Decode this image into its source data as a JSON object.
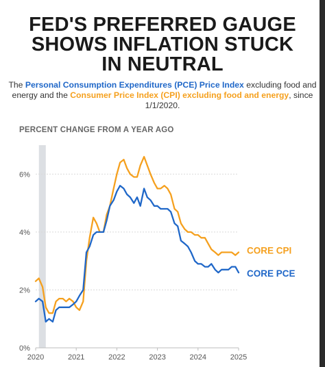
{
  "headline": {
    "line1": "FED'S PREFERRED GAUGE",
    "line2": "SHOWS INFLATION STUCK",
    "line3": "IN NEUTRAL"
  },
  "dek": {
    "t1": "The ",
    "pce_name": "Personal Consumption Expenditures (PCE) Price Index",
    "t2": " excluding food and energy and the ",
    "cpi_name": "Consumer Price Index (CPI) excluding food and energy",
    "t3": ", since 1/1/2020."
  },
  "axis_title": "PERCENT CHANGE FROM A YEAR AGO",
  "colors": {
    "pce": "#1f67c8",
    "cpi": "#f5a01e",
    "grid": "#d9d9d9",
    "recession": "#dcdfe3"
  },
  "chart_data": {
    "type": "line",
    "ylim": [
      0,
      7
    ],
    "xlim": [
      2020.0,
      2025.0
    ],
    "y_ticks": [
      0,
      2,
      4,
      6
    ],
    "y_tick_labels": [
      "0%",
      "2%",
      "4%",
      "6%"
    ],
    "x_ticks": [
      2020,
      2021,
      2022,
      2023,
      2024,
      2025
    ],
    "x_tick_labels": [
      "2020",
      "2021",
      "2022",
      "2023",
      "2024",
      "2025"
    ],
    "grid": true,
    "recession_band": [
      2020.08,
      2020.25
    ],
    "series": [
      {
        "name": "CORE CPI",
        "color": "#f5a01e",
        "x": [
          2020.0,
          2020.08,
          2020.17,
          2020.25,
          2020.33,
          2020.42,
          2020.5,
          2020.58,
          2020.67,
          2020.75,
          2020.83,
          2020.92,
          2021.0,
          2021.08,
          2021.17,
          2021.25,
          2021.33,
          2021.42,
          2021.5,
          2021.58,
          2021.67,
          2021.75,
          2021.83,
          2021.92,
          2022.0,
          2022.08,
          2022.17,
          2022.25,
          2022.33,
          2022.42,
          2022.5,
          2022.58,
          2022.67,
          2022.75,
          2022.83,
          2022.92,
          2023.0,
          2023.08,
          2023.17,
          2023.25,
          2023.33,
          2023.42,
          2023.5,
          2023.58,
          2023.67,
          2023.75,
          2023.83,
          2023.92,
          2024.0,
          2024.08,
          2024.17,
          2024.25,
          2024.33,
          2024.42,
          2024.5,
          2024.58,
          2024.67,
          2024.75,
          2024.83,
          2024.92,
          2025.0
        ],
        "y": [
          2.3,
          2.4,
          2.1,
          1.4,
          1.2,
          1.2,
          1.6,
          1.7,
          1.7,
          1.6,
          1.7,
          1.6,
          1.4,
          1.3,
          1.6,
          3.0,
          3.8,
          4.5,
          4.3,
          4.0,
          4.0,
          4.6,
          4.9,
          5.5,
          6.0,
          6.4,
          6.5,
          6.2,
          6.0,
          5.9,
          5.9,
          6.3,
          6.6,
          6.3,
          6.0,
          5.7,
          5.5,
          5.5,
          5.6,
          5.5,
          5.3,
          4.8,
          4.7,
          4.3,
          4.1,
          4.0,
          4.0,
          3.9,
          3.9,
          3.8,
          3.8,
          3.6,
          3.4,
          3.3,
          3.2,
          3.3,
          3.3,
          3.3,
          3.3,
          3.2,
          3.3
        ]
      },
      {
        "name": "CORE PCE",
        "color": "#1f67c8",
        "x": [
          2020.0,
          2020.08,
          2020.17,
          2020.25,
          2020.33,
          2020.42,
          2020.5,
          2020.58,
          2020.67,
          2020.75,
          2020.83,
          2020.92,
          2021.0,
          2021.08,
          2021.17,
          2021.25,
          2021.33,
          2021.42,
          2021.5,
          2021.58,
          2021.67,
          2021.75,
          2021.83,
          2021.92,
          2022.0,
          2022.08,
          2022.17,
          2022.25,
          2022.33,
          2022.42,
          2022.5,
          2022.58,
          2022.67,
          2022.75,
          2022.83,
          2022.92,
          2023.0,
          2023.08,
          2023.17,
          2023.25,
          2023.33,
          2023.42,
          2023.5,
          2023.58,
          2023.67,
          2023.75,
          2023.83,
          2023.92,
          2024.0,
          2024.08,
          2024.17,
          2024.25,
          2024.33,
          2024.42,
          2024.5,
          2024.58,
          2024.67,
          2024.75,
          2024.83,
          2024.92,
          2025.0
        ],
        "y": [
          1.6,
          1.7,
          1.6,
          0.9,
          1.0,
          0.9,
          1.3,
          1.4,
          1.4,
          1.4,
          1.4,
          1.5,
          1.6,
          1.8,
          2.0,
          3.3,
          3.5,
          3.9,
          4.0,
          4.0,
          4.0,
          4.4,
          4.9,
          5.1,
          5.4,
          5.6,
          5.5,
          5.3,
          5.2,
          5.0,
          5.2,
          4.9,
          5.5,
          5.2,
          5.1,
          4.9,
          4.9,
          4.8,
          4.8,
          4.8,
          4.7,
          4.3,
          4.2,
          3.7,
          3.6,
          3.5,
          3.3,
          3.0,
          2.9,
          2.9,
          2.8,
          2.8,
          2.9,
          2.7,
          2.6,
          2.7,
          2.7,
          2.7,
          2.8,
          2.8,
          2.6
        ]
      }
    ]
  }
}
